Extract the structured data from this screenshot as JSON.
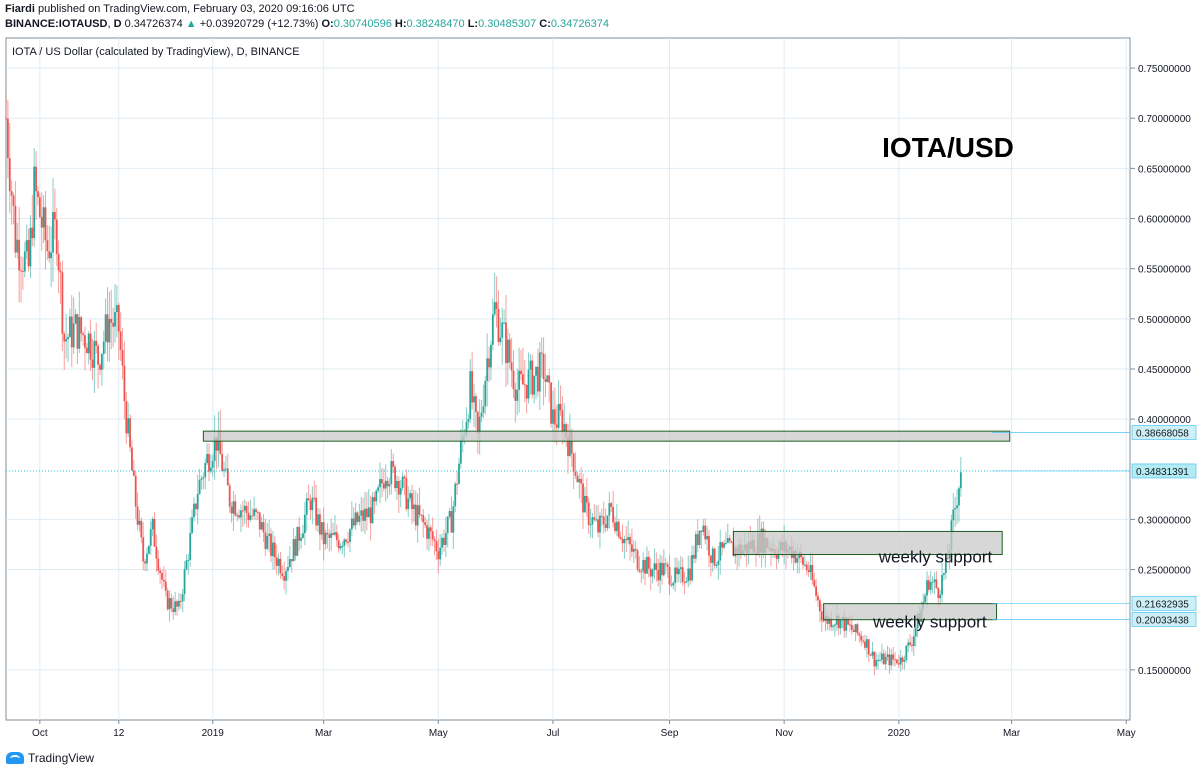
{
  "header": {
    "author": "Fiardi",
    "published_text": "published on TradingView.com, February 03, 2020 09:16:06 UTC",
    "symbol": "BINANCE:IOTAUSD",
    "timeframe": "D",
    "last": "0.34726374",
    "change": "+0.03920729 (+12.73%)",
    "o_label": "O:",
    "o": "0.30740596",
    "h_label": "H:",
    "h": "0.38248470",
    "l_label": "L:",
    "l": "0.30485307",
    "c_label": "C:",
    "c": "0.34726374"
  },
  "footer": {
    "brand": "TradingView"
  },
  "colors": {
    "up": "#26a69a",
    "down": "#ef5350",
    "grid": "#e1ecf2",
    "zone_fill": "#c9c9c9",
    "zone_stroke": "#1b5e20",
    "last_price_bg": "#b2ebf2"
  },
  "chart_data": {
    "type": "candlestick",
    "title": "IOTA / US Dollar (calculated by TradingView), D, BINANCE",
    "annotation_title": "IOTA/USD",
    "y_ticks": [
      "0.75000000",
      "0.70000000",
      "0.65000000",
      "0.60000000",
      "0.55000000",
      "0.50000000",
      "0.45000000",
      "0.40000000",
      "0.30000000",
      "0.25000000",
      "0.15000000"
    ],
    "y_tick_values": [
      0.75,
      0.7,
      0.65,
      0.6,
      0.55,
      0.5,
      0.45,
      0.4,
      0.3,
      0.25,
      0.15
    ],
    "ylim": [
      0.1,
      0.78
    ],
    "x_ticks": [
      "Oct",
      "12",
      "2019",
      "Mar",
      "May",
      "Jul",
      "Sep",
      "Nov",
      "2020",
      "Mar",
      "May"
    ],
    "x_tick_dates": [
      "2018-10-01",
      "2018-11-12",
      "2019-01-01",
      "2019-03-01",
      "2019-05-01",
      "2019-07-01",
      "2019-09-01",
      "2019-11-01",
      "2020-01-01",
      "2020-03-01",
      "2020-05-01"
    ],
    "xlim": [
      "2018-09-13",
      "2020-05-03"
    ],
    "price_labels": [
      {
        "text": "0.38668058",
        "value": 0.38668058,
        "kind": "zone"
      },
      {
        "text": "0.34831391",
        "value": 0.34831391,
        "kind": "last"
      },
      {
        "text": "0.21632935",
        "value": 0.21632935,
        "kind": "zone"
      },
      {
        "text": "0.20033438",
        "value": 0.20033438,
        "kind": "zone"
      }
    ],
    "zones": [
      {
        "label": "",
        "start": "2018-12-27",
        "end": "2020-02-29",
        "low": 0.378,
        "high": 0.388
      },
      {
        "label": "weekly support",
        "start": "2019-10-05",
        "end": "2020-02-25",
        "low": 0.265,
        "high": 0.288
      },
      {
        "label": "weekly support",
        "start": "2019-11-22",
        "end": "2020-02-22",
        "low": 0.2,
        "high": 0.216
      }
    ],
    "price_path": [
      [
        "2018-09-13",
        0.7
      ],
      [
        "2018-09-18",
        0.58
      ],
      [
        "2018-09-25",
        0.55
      ],
      [
        "2018-09-28",
        0.63
      ],
      [
        "2018-10-05",
        0.57
      ],
      [
        "2018-10-10",
        0.59
      ],
      [
        "2018-10-14",
        0.48
      ],
      [
        "2018-10-20",
        0.49
      ],
      [
        "2018-10-27",
        0.48
      ],
      [
        "2018-11-01",
        0.46
      ],
      [
        "2018-11-07",
        0.5
      ],
      [
        "2018-11-12",
        0.49
      ],
      [
        "2018-11-15",
        0.42
      ],
      [
        "2018-11-20",
        0.33
      ],
      [
        "2018-11-25",
        0.26
      ],
      [
        "2018-11-30",
        0.29
      ],
      [
        "2018-12-07",
        0.22
      ],
      [
        "2018-12-14",
        0.21
      ],
      [
        "2018-12-20",
        0.28
      ],
      [
        "2018-12-24",
        0.33
      ],
      [
        "2018-12-29",
        0.36
      ],
      [
        "2019-01-03",
        0.38
      ],
      [
        "2019-01-10",
        0.32
      ],
      [
        "2019-01-17",
        0.31
      ],
      [
        "2019-01-25",
        0.3
      ],
      [
        "2019-02-01",
        0.27
      ],
      [
        "2019-02-08",
        0.25
      ],
      [
        "2019-02-15",
        0.28
      ],
      [
        "2019-02-22",
        0.32
      ],
      [
        "2019-03-01",
        0.28
      ],
      [
        "2019-03-10",
        0.28
      ],
      [
        "2019-03-20",
        0.3
      ],
      [
        "2019-03-28",
        0.31
      ],
      [
        "2019-04-03",
        0.35
      ],
      [
        "2019-04-10",
        0.34
      ],
      [
        "2019-04-17",
        0.31
      ],
      [
        "2019-04-25",
        0.29
      ],
      [
        "2019-05-01",
        0.27
      ],
      [
        "2019-05-08",
        0.3
      ],
      [
        "2019-05-13",
        0.37
      ],
      [
        "2019-05-18",
        0.43
      ],
      [
        "2019-05-22",
        0.38
      ],
      [
        "2019-05-27",
        0.46
      ],
      [
        "2019-05-31",
        0.51
      ],
      [
        "2019-06-05",
        0.48
      ],
      [
        "2019-06-12",
        0.43
      ],
      [
        "2019-06-19",
        0.44
      ],
      [
        "2019-06-26",
        0.45
      ],
      [
        "2019-07-01",
        0.4
      ],
      [
        "2019-07-06",
        0.4
      ],
      [
        "2019-07-12",
        0.36
      ],
      [
        "2019-07-18",
        0.31
      ],
      [
        "2019-07-25",
        0.29
      ],
      [
        "2019-08-01",
        0.31
      ],
      [
        "2019-08-08",
        0.28
      ],
      [
        "2019-08-15",
        0.26
      ],
      [
        "2019-08-22",
        0.25
      ],
      [
        "2019-08-29",
        0.25
      ],
      [
        "2019-09-05",
        0.24
      ],
      [
        "2019-09-12",
        0.25
      ],
      [
        "2019-09-18",
        0.3
      ],
      [
        "2019-09-24",
        0.26
      ],
      [
        "2019-10-01",
        0.27
      ],
      [
        "2019-10-10",
        0.27
      ],
      [
        "2019-10-20",
        0.28
      ],
      [
        "2019-10-28",
        0.27
      ],
      [
        "2019-11-05",
        0.27
      ],
      [
        "2019-11-14",
        0.25
      ],
      [
        "2019-11-22",
        0.2
      ],
      [
        "2019-11-30",
        0.2
      ],
      [
        "2019-12-07",
        0.19
      ],
      [
        "2019-12-14",
        0.18
      ],
      [
        "2019-12-19",
        0.16
      ],
      [
        "2019-12-26",
        0.16
      ],
      [
        "2020-01-02",
        0.16
      ],
      [
        "2020-01-08",
        0.18
      ],
      [
        "2020-01-13",
        0.21
      ],
      [
        "2020-01-17",
        0.24
      ],
      [
        "2020-01-22",
        0.23
      ],
      [
        "2020-01-26",
        0.25
      ],
      [
        "2020-01-30",
        0.3
      ],
      [
        "2020-02-03",
        0.35
      ]
    ]
  }
}
